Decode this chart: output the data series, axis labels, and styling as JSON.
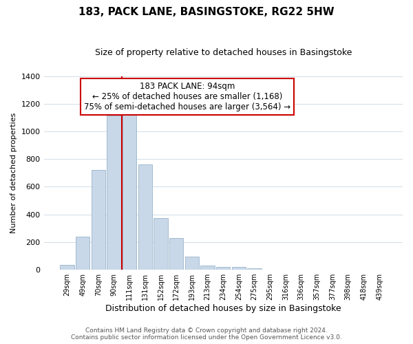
{
  "title": "183, PACK LANE, BASINGSTOKE, RG22 5HW",
  "subtitle": "Size of property relative to detached houses in Basingstoke",
  "xlabel": "Distribution of detached houses by size in Basingstoke",
  "ylabel": "Number of detached properties",
  "bar_labels": [
    "29sqm",
    "49sqm",
    "70sqm",
    "90sqm",
    "111sqm",
    "131sqm",
    "152sqm",
    "172sqm",
    "193sqm",
    "213sqm",
    "234sqm",
    "254sqm",
    "275sqm",
    "295sqm",
    "316sqm",
    "336sqm",
    "357sqm",
    "377sqm",
    "398sqm",
    "418sqm",
    "439sqm"
  ],
  "bar_values": [
    35,
    240,
    720,
    1115,
    1120,
    760,
    375,
    228,
    93,
    30,
    20,
    18,
    10,
    0,
    0,
    0,
    0,
    0,
    0,
    0,
    0
  ],
  "bar_color": "#c8d8e8",
  "bar_edge_color": "#9ab4cc",
  "vline_color": "#cc0000",
  "vline_bar_index": 4,
  "annotation_line1": "183 PACK LANE: 94sqm",
  "annotation_line2": "← 25% of detached houses are smaller (1,168)",
  "annotation_line3": "75% of semi-detached houses are larger (3,564) →",
  "ylim": [
    0,
    1400
  ],
  "yticks": [
    0,
    200,
    400,
    600,
    800,
    1000,
    1200,
    1400
  ],
  "footer_line1": "Contains HM Land Registry data © Crown copyright and database right 2024.",
  "footer_line2": "Contains public sector information licensed under the Open Government Licence v3.0.",
  "background_color": "#ffffff",
  "grid_color": "#d0dce8",
  "title_fontsize": 11,
  "subtitle_fontsize": 9,
  "ylabel_fontsize": 8,
  "xlabel_fontsize": 9,
  "tick_fontsize": 8,
  "xtick_fontsize": 7,
  "footer_fontsize": 6.5,
  "ann_fontsize": 8.5
}
